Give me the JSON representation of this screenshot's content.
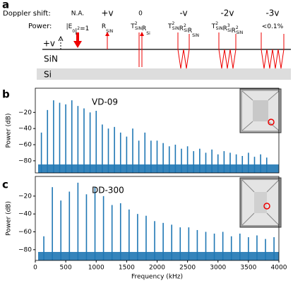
{
  "panel_labels": [
    "a",
    "b",
    "c"
  ],
  "diagram": {
    "shift_label": "Doppler shift:",
    "power_label": "Power:",
    "velocity_label": "+v",
    "layer_top": "SiN",
    "layer_bottom": "Si",
    "columns": [
      {
        "shift": "N.A.",
        "power": [
          {
            "text": "|E",
            "sub": "0"
          },
          {
            "text": "|",
            "sup": "2"
          },
          {
            "text": "=1"
          }
        ]
      },
      {
        "shift": "+v",
        "power": [
          {
            "text": "R",
            "sub": "SiN"
          }
        ]
      },
      {
        "shift": "0",
        "power": [
          {
            "text": "T",
            "sup": "2",
            "sub": "SiN"
          },
          {
            "text": "R",
            "sub": "Si"
          }
        ]
      },
      {
        "shift": "-v",
        "power": [
          {
            "text": "T",
            "sup": "2",
            "sub": "SiN"
          },
          {
            "text": "R",
            "sup": "2",
            "sub": "Si"
          },
          {
            "text": "R",
            "sub": "SiN"
          }
        ]
      },
      {
        "shift": "-2v",
        "power": [
          {
            "text": "T",
            "sup": "2",
            "sub": "SiN"
          },
          {
            "text": "R",
            "sup": "3",
            "sub": "Si"
          },
          {
            "text": "R",
            "sup": "2",
            "sub": "SiN"
          }
        ]
      },
      {
        "shift": "-3v",
        "power": [
          {
            "text": "<0.1%"
          }
        ]
      }
    ]
  },
  "chart_data": [
    {
      "type": "stem",
      "title": "VD-09",
      "ylabel": "Power (dB)",
      "color": "#1f77b4",
      "xlim": [
        0,
        4000
      ],
      "ylim": [
        -95,
        10
      ],
      "yticks": [
        {
          "value": -80,
          "label": "−80"
        },
        {
          "value": -60,
          "label": "−60"
        },
        {
          "value": -40,
          "label": "−40"
        },
        {
          "value": -20,
          "label": "−20"
        }
      ],
      "x": [
        100,
        200,
        300,
        400,
        500,
        600,
        700,
        800,
        900,
        1000,
        1100,
        1200,
        1300,
        1400,
        1500,
        1600,
        1700,
        1800,
        1900,
        2000,
        2100,
        2200,
        2300,
        2400,
        2500,
        2600,
        2700,
        2800,
        2900,
        3000,
        3100,
        3200,
        3300,
        3400,
        3500,
        3600,
        3700,
        3800
      ],
      "values": [
        -45,
        -17,
        -5,
        -8,
        -10,
        -5,
        -12,
        -15,
        -20,
        -18,
        -35,
        -40,
        -38,
        -45,
        -50,
        -40,
        -55,
        -45,
        -55,
        -55,
        -58,
        -62,
        -60,
        -65,
        -62,
        -68,
        -65,
        -70,
        -66,
        -72,
        -68,
        -70,
        -72,
        -74,
        -70,
        -75,
        -72,
        -76
      ]
    },
    {
      "type": "stem",
      "title": "DD-300",
      "ylabel": "Power (dB)",
      "xlabel": "Frequency (kHz)",
      "color": "#1f77b4",
      "xlim": [
        0,
        4000
      ],
      "ylim": [
        -92,
        2
      ],
      "xticks": [
        0,
        500,
        1000,
        1500,
        2000,
        2500,
        3000,
        3500,
        4000
      ],
      "yticks": [
        {
          "value": -80,
          "label": "−80"
        },
        {
          "value": -60,
          "label": "−60"
        },
        {
          "value": -40,
          "label": "−40"
        },
        {
          "value": -20,
          "label": "−20"
        }
      ],
      "x": [
        140,
        280,
        420,
        560,
        700,
        840,
        980,
        1120,
        1260,
        1400,
        1540,
        1680,
        1820,
        1960,
        2100,
        2240,
        2380,
        2520,
        2660,
        2800,
        2940,
        3080,
        3220,
        3360,
        3500,
        3640,
        3780,
        3920
      ],
      "values": [
        -65,
        -10,
        -25,
        -15,
        -5,
        -18,
        -10,
        -20,
        -30,
        -28,
        -35,
        -40,
        -42,
        -48,
        -50,
        -52,
        -55,
        -55,
        -58,
        -60,
        -62,
        -60,
        -65,
        -62,
        -66,
        -64,
        -68,
        -66
      ]
    }
  ]
}
